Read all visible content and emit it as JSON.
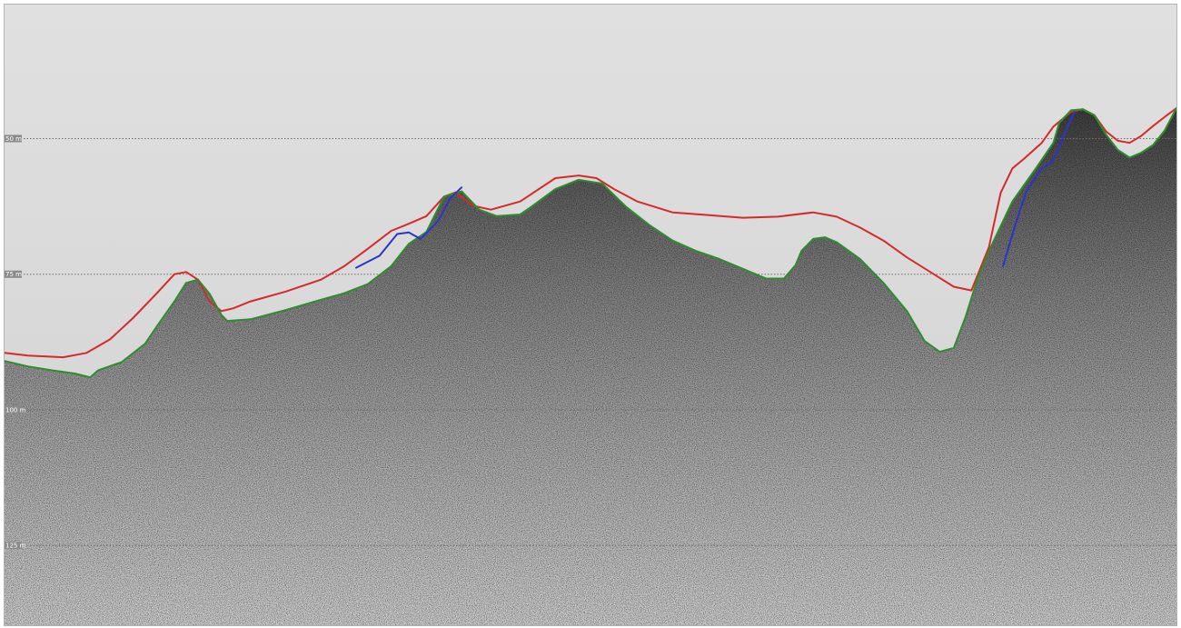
{
  "chart_data": {
    "type": "line",
    "title": "",
    "xlabel": "",
    "ylabel": "",
    "grid": true,
    "background_color": "#dcdcdc",
    "gridline_labels": [
      {
        "text": "50 m",
        "value": 50
      },
      {
        "text": "75 m",
        "value": 75
      },
      {
        "text": "100 m",
        "value": 100
      },
      {
        "text": "125 m",
        "value": 125
      }
    ],
    "ylim": [
      25.3,
      139.7
    ],
    "xlim": [
      0,
      100
    ],
    "series": [
      {
        "color": "#d42a2a",
        "x": [
          0,
          2,
          5,
          7,
          9,
          11,
          13,
          14.5,
          15.5,
          16.5,
          17.5,
          18.5,
          19.5,
          21,
          24,
          27,
          29,
          31,
          33,
          34.5,
          36,
          37.5,
          38.5,
          40,
          41.5,
          44,
          47,
          49,
          50.5,
          52,
          54,
          57,
          60,
          63,
          66,
          69,
          71,
          73,
          75,
          77,
          79,
          81,
          82.5,
          84,
          85,
          86,
          87,
          88.5,
          89.5,
          91,
          92,
          93,
          94,
          95,
          96,
          97,
          98,
          99,
          100
        ],
        "y": [
          89.5,
          90.0,
          90.3,
          89.5,
          87.0,
          83.0,
          78.5,
          75.0,
          74.6,
          76.0,
          80.0,
          81.8,
          81.3,
          80.0,
          78.2,
          76.0,
          73.5,
          70.3,
          67.0,
          65.7,
          64.3,
          60.7,
          59.9,
          62.4,
          63.1,
          61.6,
          57.3,
          56.8,
          57.3,
          59.3,
          61.6,
          63.6,
          64.1,
          64.6,
          64.4,
          63.6,
          64.4,
          66.4,
          68.8,
          71.9,
          74.6,
          77.3,
          78.0,
          70.0,
          60.0,
          55.5,
          53.7,
          50.8,
          47.8,
          45.1,
          44.6,
          45.7,
          48.7,
          50.4,
          50.8,
          49.5,
          47.7,
          46.0,
          44.4
        ]
      },
      {
        "color": "#2e8c2e",
        "x": [
          0,
          2,
          4,
          6,
          7.3,
          8,
          10,
          12,
          13,
          14.5,
          15.5,
          16.5,
          17.5,
          18.5,
          19,
          21,
          24,
          27,
          29,
          31,
          33,
          34.5,
          36,
          37.5,
          39,
          40.5,
          42,
          44,
          45,
          47,
          49,
          51,
          53,
          55,
          57,
          59,
          61,
          63,
          65,
          66.5,
          67.5,
          68,
          69,
          70,
          71,
          73,
          75,
          77,
          78.5,
          79.8,
          81,
          82,
          83,
          84,
          86,
          88,
          89.5,
          90,
          91,
          92,
          93,
          94,
          95,
          96,
          97,
          98,
          99,
          100
        ],
        "y": [
          91.0,
          92.0,
          92.7,
          93.3,
          94.0,
          92.7,
          91.2,
          87.8,
          84.6,
          80.0,
          76.6,
          76.0,
          78.6,
          82.5,
          83.6,
          83.3,
          81.6,
          79.7,
          78.5,
          76.8,
          73.5,
          69.4,
          67.2,
          60.7,
          59.7,
          63.1,
          64.3,
          64.0,
          62.5,
          59.3,
          57.6,
          58.3,
          62.5,
          65.9,
          68.8,
          70.7,
          72.2,
          74.0,
          75.8,
          75.8,
          73.3,
          70.7,
          68.5,
          68.2,
          69.1,
          72.2,
          76.6,
          81.8,
          87.3,
          89.3,
          88.6,
          82.9,
          76.0,
          70.7,
          61.6,
          55.5,
          50.8,
          47.1,
          44.8,
          44.6,
          45.7,
          49.3,
          52.1,
          53.5,
          52.6,
          51.2,
          48.5,
          44.4
        ]
      },
      {
        "color": "#2a35c8",
        "x": [
          30,
          32,
          33.5,
          34.5,
          35.5,
          37,
          38,
          39,
          40,
          41
        ],
        "y": [
          73.8,
          71.6,
          67.6,
          67.3,
          68.5,
          65.2,
          61.1,
          59.0,
          null,
          null
        ]
      },
      {
        "color": "#2a35c8",
        "x": [
          85.2,
          86.2,
          87.2,
          88.5,
          89.5,
          90.8,
          91.3
        ],
        "y": [
          73.5,
          66.2,
          59.7,
          55.5,
          54.1,
          47.4,
          45.1
        ]
      }
    ]
  }
}
